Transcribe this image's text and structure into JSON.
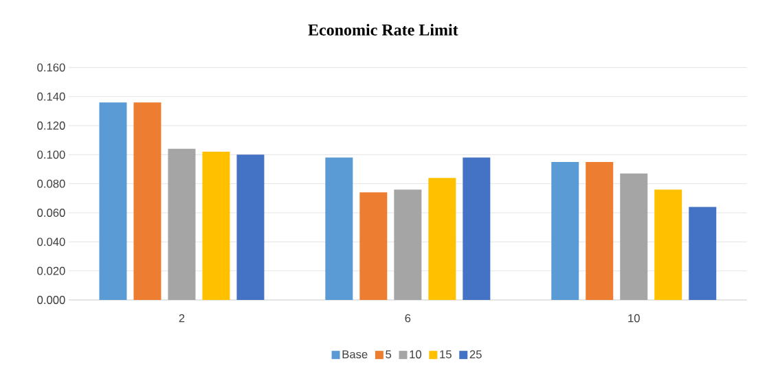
{
  "chart_data": {
    "type": "bar",
    "title": "Economic Rate Limit",
    "categories": [
      "2",
      "6",
      "10"
    ],
    "series": [
      {
        "name": "Base",
        "color": "#5b9bd5",
        "values": [
          0.136,
          0.098,
          0.095
        ]
      },
      {
        "name": "5",
        "color": "#ed7d31",
        "values": [
          0.136,
          0.074,
          0.095
        ]
      },
      {
        "name": "10",
        "color": "#a5a5a5",
        "values": [
          0.104,
          0.076,
          0.087
        ]
      },
      {
        "name": "15",
        "color": "#ffc000",
        "values": [
          0.102,
          0.084,
          0.076
        ]
      },
      {
        "name": "25",
        "color": "#4472c4",
        "values": [
          0.1,
          0.098,
          0.064
        ]
      }
    ],
    "ylim": [
      0,
      0.16
    ],
    "yticks": [
      {
        "value": 0,
        "label": "0.000"
      },
      {
        "value": 0.02,
        "label": "0.020"
      },
      {
        "value": 0.04,
        "label": "0.040"
      },
      {
        "value": 0.06,
        "label": "0.060"
      },
      {
        "value": 0.08,
        "label": "0.080"
      },
      {
        "value": 0.1,
        "label": "0.100"
      },
      {
        "value": 0.12,
        "label": "0.120"
      },
      {
        "value": 0.14,
        "label": "0.140"
      },
      {
        "value": 0.16,
        "label": "0.160"
      }
    ],
    "grid": "y",
    "legend": "bottom"
  }
}
